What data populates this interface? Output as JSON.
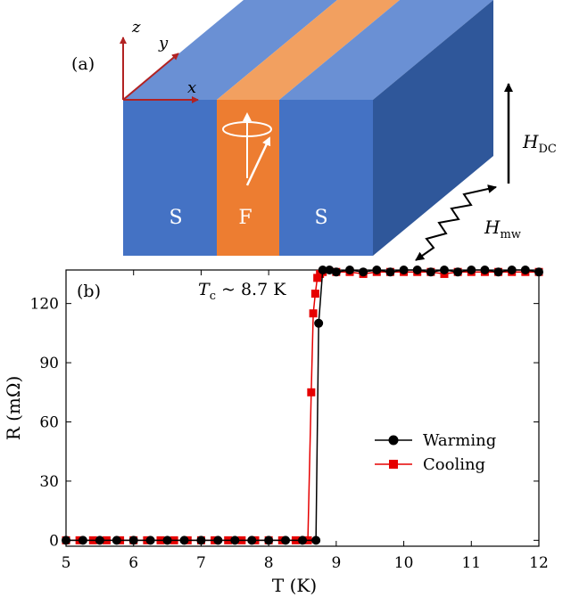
{
  "panel_a": {
    "label": "(a)",
    "axes": {
      "x": "x",
      "y": "y",
      "z": "z"
    },
    "layers": [
      "S",
      "F",
      "S"
    ],
    "field_dc": {
      "main": "H",
      "sub": "DC"
    },
    "field_mw": {
      "main": "H",
      "sub": "mw"
    },
    "colors": {
      "s_front": "#4472C4",
      "s_top": "#6A90D4",
      "side": "#2F579A",
      "f_front": "#ED7D31",
      "f_top": "#F2A060",
      "axis": "#B22222"
    }
  },
  "chart_data": {
    "type": "scatter-line",
    "panel_label": "(b)",
    "annotation": {
      "main": "T",
      "sub": "c",
      "rest": " ~ 8.7 K"
    },
    "xlabel": "T (K)",
    "ylabel": "R (mΩ)",
    "xlim": [
      5,
      12
    ],
    "ylim": [
      -3,
      137
    ],
    "xticks": [
      5,
      6,
      7,
      8,
      9,
      10,
      11,
      12
    ],
    "yticks": [
      0,
      30,
      60,
      90,
      120
    ],
    "legend_position": "center-right",
    "series": [
      {
        "name": "Warming",
        "color": "#000000",
        "marker": "circle",
        "x": [
          5.0,
          5.25,
          5.5,
          5.75,
          6.0,
          6.25,
          6.5,
          6.75,
          7.0,
          7.25,
          7.5,
          7.75,
          8.0,
          8.25,
          8.5,
          8.7,
          8.74,
          8.8,
          8.9,
          9.0,
          9.2,
          9.4,
          9.6,
          9.8,
          10.0,
          10.2,
          10.4,
          10.6,
          10.8,
          11.0,
          11.2,
          11.4,
          11.6,
          11.8,
          12.0
        ],
        "y": [
          0,
          0,
          0,
          0,
          0,
          0,
          0,
          0,
          0,
          0,
          0,
          0,
          0,
          0,
          0,
          0,
          110,
          137,
          137,
          136,
          137,
          136,
          137,
          136,
          137,
          137,
          136,
          137,
          136,
          137,
          137,
          136,
          137,
          137,
          136
        ]
      },
      {
        "name": "Cooling",
        "color": "#E60000",
        "marker": "square",
        "x": [
          5.0,
          5.2,
          5.4,
          5.6,
          5.8,
          6.0,
          6.2,
          6.4,
          6.6,
          6.8,
          7.0,
          7.2,
          7.4,
          7.6,
          7.8,
          8.0,
          8.2,
          8.4,
          8.58,
          8.63,
          8.66,
          8.69,
          8.72,
          8.76,
          8.8,
          9.0,
          9.2,
          9.4,
          9.6,
          9.8,
          10.0,
          10.2,
          10.4,
          10.6,
          10.8,
          11.0,
          11.2,
          11.4,
          11.6,
          11.8,
          12.0
        ],
        "y": [
          0,
          0,
          0,
          0,
          0,
          0,
          0,
          0,
          0,
          0,
          0,
          0,
          0,
          0,
          0,
          0,
          0,
          0,
          0,
          75,
          115,
          125,
          133,
          135,
          136,
          136,
          136,
          135,
          136,
          136,
          136,
          136,
          136,
          135,
          136,
          136,
          136,
          136,
          136,
          136,
          136
        ]
      }
    ]
  }
}
